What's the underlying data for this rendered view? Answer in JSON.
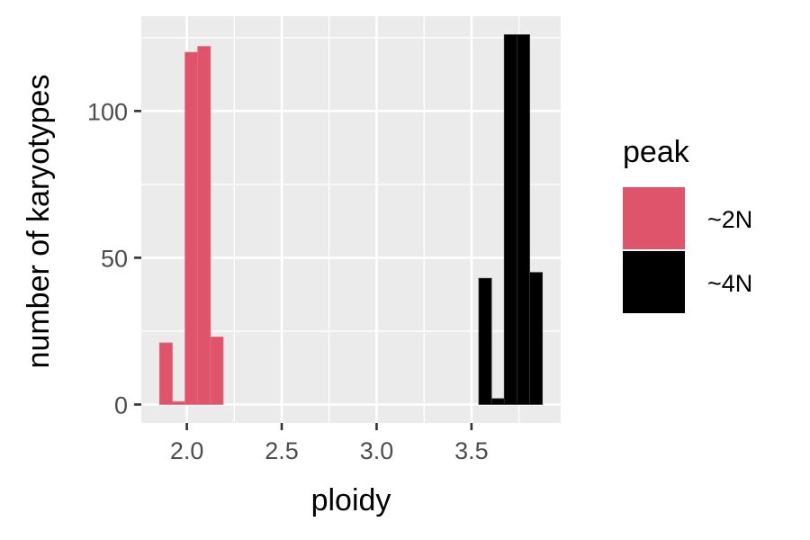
{
  "chart_data": {
    "type": "bar",
    "title": "",
    "xlabel": "ploidy",
    "ylabel": "number of karyotypes",
    "xlim": [
      1.76,
      3.97
    ],
    "ylim": [
      -6.3,
      132.3
    ],
    "x_ticks": [
      2.0,
      2.5,
      3.0,
      3.5
    ],
    "x_tick_labels": [
      "2.0",
      "2.5",
      "3.0",
      "3.5"
    ],
    "y_ticks": [
      0,
      50,
      100
    ],
    "y_tick_labels": [
      "0",
      "50",
      "100"
    ],
    "bin_width": 0.067,
    "grid": true,
    "legend": {
      "title": "peak",
      "position": "right"
    },
    "series": [
      {
        "name": "~2N",
        "color": "#DF536B",
        "bins": [
          {
            "x": 1.89,
            "y": 21
          },
          {
            "x": 1.957,
            "y": 1
          },
          {
            "x": 2.024,
            "y": 120
          },
          {
            "x": 2.091,
            "y": 122
          },
          {
            "x": 2.158,
            "y": 23
          }
        ]
      },
      {
        "name": "~4N",
        "color": "#000000",
        "bins": [
          {
            "x": 3.572,
            "y": 43
          },
          {
            "x": 3.639,
            "y": 2
          },
          {
            "x": 3.706,
            "y": 126
          },
          {
            "x": 3.773,
            "y": 126
          },
          {
            "x": 3.84,
            "y": 45
          }
        ]
      }
    ]
  }
}
